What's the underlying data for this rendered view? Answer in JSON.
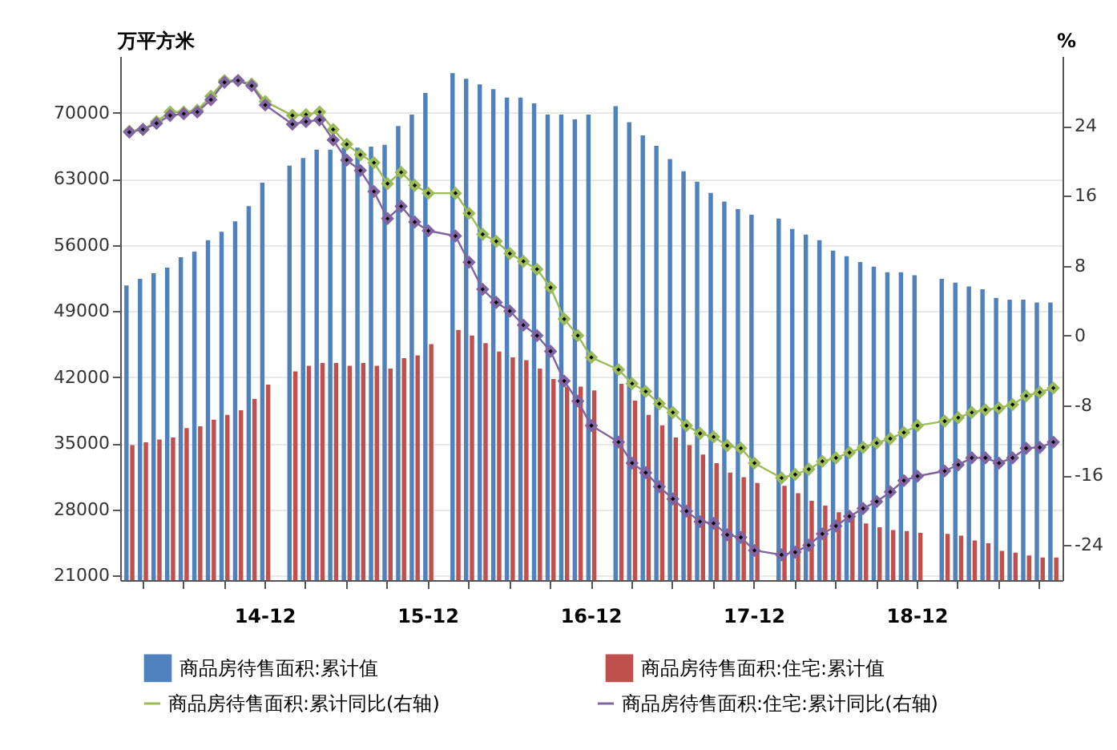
{
  "chart_data": {
    "type": "bar",
    "ylabel": "万平方米",
    "y2label": "%",
    "categories": [
      null,
      null,
      null,
      null,
      null,
      null,
      null,
      null,
      null,
      null,
      "14-12",
      null,
      null,
      null,
      null,
      null,
      null,
      null,
      null,
      null,
      null,
      null,
      "15-12",
      null,
      null,
      null,
      null,
      null,
      null,
      null,
      null,
      null,
      null,
      null,
      "16-12",
      null,
      null,
      null,
      null,
      null,
      null,
      null,
      null,
      null,
      null,
      null,
      "17-12",
      null,
      null,
      null,
      null,
      null,
      null,
      null,
      null,
      null,
      null,
      null,
      "18-12",
      null,
      null,
      null,
      null,
      null,
      null,
      null,
      null,
      null,
      null
    ],
    "series": [
      {
        "name": "商品房待售面积:累计值",
        "color": "#4f81bd",
        "values": [
          51700,
          52400,
          53000,
          53600,
          54700,
          55300,
          56500,
          57400,
          58500,
          60100,
          62600,
          null,
          64400,
          65200,
          66100,
          66100,
          66300,
          66300,
          66400,
          66600,
          68600,
          69800,
          72100,
          null,
          74200,
          73600,
          73000,
          72500,
          71600,
          71600,
          71000,
          69800,
          69800,
          69300,
          69800,
          null,
          70700,
          69000,
          67600,
          66500,
          65100,
          63800,
          62700,
          61500,
          60600,
          59800,
          59200,
          null,
          58800,
          57700,
          57100,
          56500,
          55400,
          54800,
          54200,
          53700,
          53100,
          53100,
          52800,
          null,
          52400,
          52000,
          51600,
          51300,
          50400,
          50200,
          50200,
          49900,
          49900
        ]
      },
      {
        "name": "商品房待售面积:住宅:累计值",
        "color": "#c0504d",
        "values": [
          34800,
          35100,
          35400,
          35600,
          36600,
          36800,
          37500,
          38000,
          38500,
          39700,
          41200,
          null,
          42600,
          43200,
          43500,
          43500,
          43200,
          43500,
          43200,
          42900,
          44000,
          44300,
          45500,
          null,
          47000,
          46400,
          45600,
          44700,
          44100,
          43800,
          42900,
          41800,
          41000,
          41000,
          40600,
          null,
          41300,
          39500,
          38000,
          36900,
          35600,
          34800,
          33800,
          32900,
          31900,
          31400,
          30800,
          null,
          30500,
          29700,
          28900,
          28400,
          27700,
          27100,
          26500,
          26100,
          25800,
          25700,
          25500,
          null,
          25400,
          25200,
          24700,
          24400,
          23600,
          23400,
          23100,
          22900,
          22900
        ]
      },
      {
        "name": "商品房待售面积:累计同比(右轴)",
        "type": "line",
        "axis": "y2",
        "color": "#9bbb59",
        "values": [
          23.4,
          23.6,
          24.5,
          25.6,
          25.6,
          25.8,
          27.4,
          29.2,
          29.2,
          28.8,
          26.8,
          null,
          25.2,
          25.3,
          25.6,
          23.6,
          21.9,
          20.7,
          19.8,
          17.4,
          18.7,
          17.2,
          16.3,
          null,
          16.3,
          14.0,
          11.6,
          10.8,
          9.4,
          8.5,
          7.6,
          5.5,
          1.9,
          0.0,
          -2.5,
          null,
          -3.9,
          -5.5,
          -6.4,
          -7.8,
          -8.8,
          -10.3,
          -11.2,
          -11.6,
          -12.6,
          -12.9,
          -14.6,
          null,
          -16.3,
          -15.9,
          -15.3,
          -14.4,
          -14.0,
          -13.4,
          -12.8,
          -12.3,
          -11.8,
          -11.1,
          -10.3,
          null,
          -9.8,
          -9.4,
          -8.8,
          -8.5,
          -8.3,
          -7.9,
          -6.9,
          -6.5,
          -6.0
        ]
      },
      {
        "name": "商品房待售面积:住宅:累计同比(右轴)",
        "type": "line",
        "axis": "y2",
        "color": "#8064a2",
        "values": [
          23.3,
          23.6,
          24.3,
          25.2,
          25.4,
          25.6,
          27.0,
          29.0,
          29.2,
          28.6,
          26.4,
          null,
          24.2,
          24.5,
          24.7,
          22.4,
          20.1,
          18.9,
          16.5,
          13.4,
          14.8,
          13.0,
          12.0,
          null,
          11.4,
          8.4,
          5.3,
          3.8,
          2.8,
          1.2,
          0.0,
          -1.8,
          -5.2,
          -7.5,
          -10.3,
          null,
          -12.2,
          -14.6,
          -15.7,
          -17.3,
          -18.7,
          -20.1,
          -21.3,
          -21.5,
          -22.8,
          -23.1,
          -24.6,
          null,
          -25.1,
          -24.8,
          -24.0,
          -22.7,
          -21.8,
          -20.7,
          -19.8,
          -19.0,
          -17.9,
          -16.6,
          -16.1,
          null,
          -15.5,
          -14.8,
          -14.0,
          -14.0,
          -14.6,
          -14.0,
          -12.9,
          -12.8,
          -12.2
        ]
      }
    ],
    "ylim": [
      20500,
      76000
    ],
    "yticks": [
      21000,
      28000,
      35000,
      42000,
      49000,
      56000,
      63000,
      70000
    ],
    "y2lim": [
      -28,
      32
    ],
    "y2ticks": [
      -24,
      -16,
      -8,
      0,
      8,
      16,
      24
    ],
    "grid": "y",
    "legend": "bottom",
    "marker": "diamond"
  }
}
